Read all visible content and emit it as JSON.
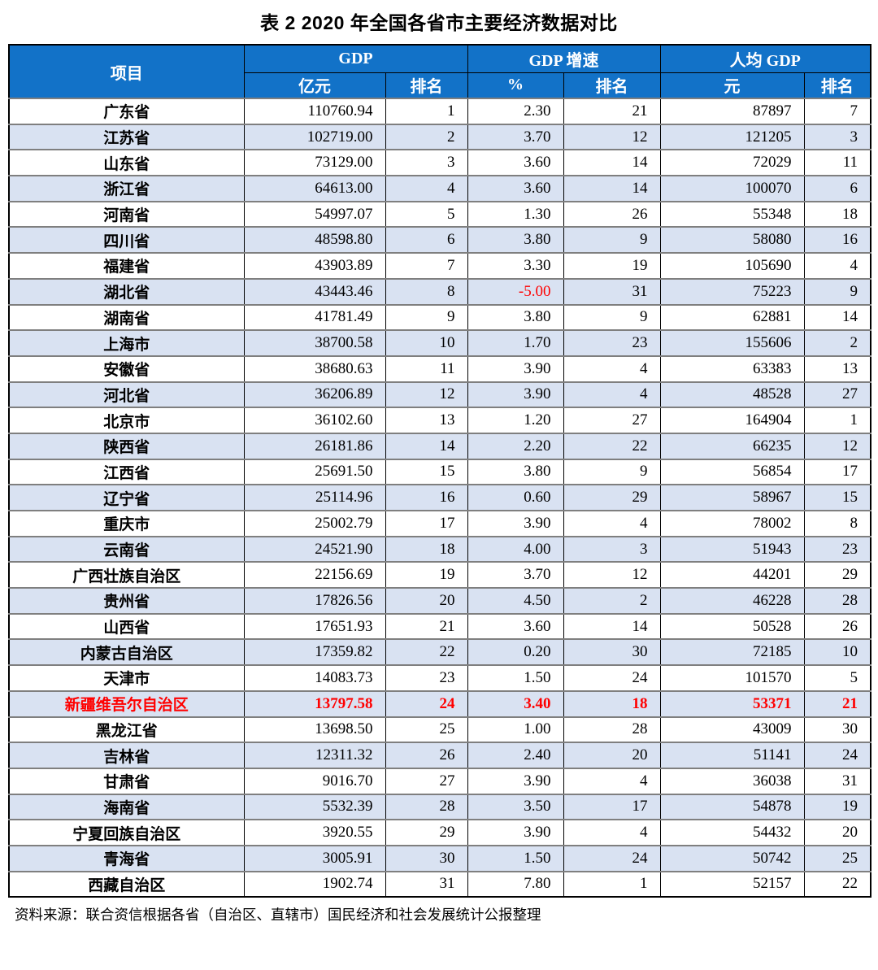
{
  "title": "表 2  2020 年全国各省市主要经济数据对比",
  "source_note": "资料来源：联合资信根据各省（自治区、直辖市）国民经济和社会发展统计公报整理",
  "colors": {
    "header_bg": "#1272C8",
    "stripe_bg": "#D9E2F2",
    "highlight_text": "#FF0000",
    "row_divider": "#7F7F7F"
  },
  "table": {
    "header": {
      "col_item": "项目",
      "group_gdp": "GDP",
      "group_growth": "GDP 增速",
      "group_percap": "人均 GDP",
      "unit_gdp": "亿元",
      "rank_gdp": "排名",
      "unit_growth": "%",
      "rank_growth": "排名",
      "unit_percap": "元",
      "rank_percap": "排名"
    },
    "highlight_row": 23,
    "rows": [
      {
        "name": "广东省",
        "gdp": "110760.94",
        "gdp_rank": "1",
        "growth": "2.30",
        "growth_rank": "21",
        "percap": "87897",
        "percap_rank": "7"
      },
      {
        "name": "江苏省",
        "gdp": "102719.00",
        "gdp_rank": "2",
        "growth": "3.70",
        "growth_rank": "12",
        "percap": "121205",
        "percap_rank": "3"
      },
      {
        "name": "山东省",
        "gdp": "73129.00",
        "gdp_rank": "3",
        "growth": "3.60",
        "growth_rank": "14",
        "percap": "72029",
        "percap_rank": "11"
      },
      {
        "name": "浙江省",
        "gdp": "64613.00",
        "gdp_rank": "4",
        "growth": "3.60",
        "growth_rank": "14",
        "percap": "100070",
        "percap_rank": "6"
      },
      {
        "name": "河南省",
        "gdp": "54997.07",
        "gdp_rank": "5",
        "growth": "1.30",
        "growth_rank": "26",
        "percap": "55348",
        "percap_rank": "18"
      },
      {
        "name": "四川省",
        "gdp": "48598.80",
        "gdp_rank": "6",
        "growth": "3.80",
        "growth_rank": "9",
        "percap": "58080",
        "percap_rank": "16"
      },
      {
        "name": "福建省",
        "gdp": "43903.89",
        "gdp_rank": "7",
        "growth": "3.30",
        "growth_rank": "19",
        "percap": "105690",
        "percap_rank": "4"
      },
      {
        "name": "湖北省",
        "gdp": "43443.46",
        "gdp_rank": "8",
        "growth": "-5.00",
        "growth_rank": "31",
        "percap": "75223",
        "percap_rank": "9"
      },
      {
        "name": "湖南省",
        "gdp": "41781.49",
        "gdp_rank": "9",
        "growth": "3.80",
        "growth_rank": "9",
        "percap": "62881",
        "percap_rank": "14"
      },
      {
        "name": "上海市",
        "gdp": "38700.58",
        "gdp_rank": "10",
        "growth": "1.70",
        "growth_rank": "23",
        "percap": "155606",
        "percap_rank": "2"
      },
      {
        "name": "安徽省",
        "gdp": "38680.63",
        "gdp_rank": "11",
        "growth": "3.90",
        "growth_rank": "4",
        "percap": "63383",
        "percap_rank": "13"
      },
      {
        "name": "河北省",
        "gdp": "36206.89",
        "gdp_rank": "12",
        "growth": "3.90",
        "growth_rank": "4",
        "percap": "48528",
        "percap_rank": "27"
      },
      {
        "name": "北京市",
        "gdp": "36102.60",
        "gdp_rank": "13",
        "growth": "1.20",
        "growth_rank": "27",
        "percap": "164904",
        "percap_rank": "1"
      },
      {
        "name": "陕西省",
        "gdp": "26181.86",
        "gdp_rank": "14",
        "growth": "2.20",
        "growth_rank": "22",
        "percap": "66235",
        "percap_rank": "12"
      },
      {
        "name": "江西省",
        "gdp": "25691.50",
        "gdp_rank": "15",
        "growth": "3.80",
        "growth_rank": "9",
        "percap": "56854",
        "percap_rank": "17"
      },
      {
        "name": "辽宁省",
        "gdp": "25114.96",
        "gdp_rank": "16",
        "growth": "0.60",
        "growth_rank": "29",
        "percap": "58967",
        "percap_rank": "15"
      },
      {
        "name": "重庆市",
        "gdp": "25002.79",
        "gdp_rank": "17",
        "growth": "3.90",
        "growth_rank": "4",
        "percap": "78002",
        "percap_rank": "8"
      },
      {
        "name": "云南省",
        "gdp": "24521.90",
        "gdp_rank": "18",
        "growth": "4.00",
        "growth_rank": "3",
        "percap": "51943",
        "percap_rank": "23"
      },
      {
        "name": "广西壮族自治区",
        "gdp": "22156.69",
        "gdp_rank": "19",
        "growth": "3.70",
        "growth_rank": "12",
        "percap": "44201",
        "percap_rank": "29"
      },
      {
        "name": "贵州省",
        "gdp": "17826.56",
        "gdp_rank": "20",
        "growth": "4.50",
        "growth_rank": "2",
        "percap": "46228",
        "percap_rank": "28"
      },
      {
        "name": "山西省",
        "gdp": "17651.93",
        "gdp_rank": "21",
        "growth": "3.60",
        "growth_rank": "14",
        "percap": "50528",
        "percap_rank": "26"
      },
      {
        "name": "内蒙古自治区",
        "gdp": "17359.82",
        "gdp_rank": "22",
        "growth": "0.20",
        "growth_rank": "30",
        "percap": "72185",
        "percap_rank": "10"
      },
      {
        "name": "天津市",
        "gdp": "14083.73",
        "gdp_rank": "23",
        "growth": "1.50",
        "growth_rank": "24",
        "percap": "101570",
        "percap_rank": "5"
      },
      {
        "name": "新疆维吾尔自治区",
        "gdp": "13797.58",
        "gdp_rank": "24",
        "growth": "3.40",
        "growth_rank": "18",
        "percap": "53371",
        "percap_rank": "21"
      },
      {
        "name": "黑龙江省",
        "gdp": "13698.50",
        "gdp_rank": "25",
        "growth": "1.00",
        "growth_rank": "28",
        "percap": "43009",
        "percap_rank": "30"
      },
      {
        "name": "吉林省",
        "gdp": "12311.32",
        "gdp_rank": "26",
        "growth": "2.40",
        "growth_rank": "20",
        "percap": "51141",
        "percap_rank": "24"
      },
      {
        "name": "甘肃省",
        "gdp": "9016.70",
        "gdp_rank": "27",
        "growth": "3.90",
        "growth_rank": "4",
        "percap": "36038",
        "percap_rank": "31"
      },
      {
        "name": "海南省",
        "gdp": "5532.39",
        "gdp_rank": "28",
        "growth": "3.50",
        "growth_rank": "17",
        "percap": "54878",
        "percap_rank": "19"
      },
      {
        "name": "宁夏回族自治区",
        "gdp": "3920.55",
        "gdp_rank": "29",
        "growth": "3.90",
        "growth_rank": "4",
        "percap": "54432",
        "percap_rank": "20"
      },
      {
        "name": "青海省",
        "gdp": "3005.91",
        "gdp_rank": "30",
        "growth": "1.50",
        "growth_rank": "24",
        "percap": "50742",
        "percap_rank": "25"
      },
      {
        "name": "西藏自治区",
        "gdp": "1902.74",
        "gdp_rank": "31",
        "growth": "7.80",
        "growth_rank": "1",
        "percap": "52157",
        "percap_rank": "22"
      }
    ]
  }
}
